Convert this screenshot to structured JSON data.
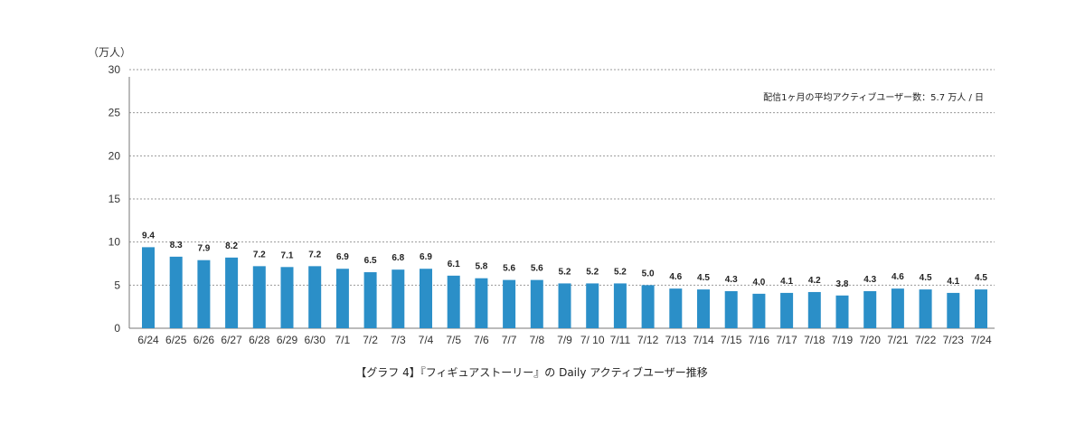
{
  "chart_data": {
    "type": "bar",
    "ylabel": "（万人）",
    "annotation": "配信1ヶ月の平均アクティブユーザー数：5.7 万人 / 日",
    "caption": "【グラフ 4】『フィギュアストーリー』の Daily アクティブユーザー推移",
    "ylim": [
      0,
      30
    ],
    "yticks": [
      0,
      5,
      10,
      15,
      20,
      25,
      30
    ],
    "grid": true,
    "bar_color": "#2b8fc8",
    "categories": [
      "6/24",
      "6/25",
      "6/26",
      "6/27",
      "6/28",
      "6/29",
      "6/30",
      "7/1",
      "7/2",
      "7/3",
      "7/4",
      "7/5",
      "7/6",
      "7/7",
      "7/8",
      "7/9",
      "7/ 10",
      "7/11",
      "7/12",
      "7/13",
      "7/14",
      "7/15",
      "7/16",
      "7/17",
      "7/18",
      "7/19",
      "7/20",
      "7/21",
      "7/22",
      "7/23",
      "7/24"
    ],
    "values": [
      9.4,
      8.3,
      7.9,
      8.2,
      7.2,
      7.1,
      7.2,
      6.9,
      6.5,
      6.8,
      6.9,
      6.1,
      5.8,
      5.6,
      5.6,
      5.2,
      5.2,
      5.2,
      5.0,
      4.6,
      4.5,
      4.3,
      4.0,
      4.1,
      4.2,
      3.8,
      4.3,
      4.6,
      4.5,
      4.1,
      4.5
    ],
    "value_labels": [
      "9.4",
      "8.3",
      "7.9",
      "8.2",
      "7.2",
      "7.1",
      "7.2",
      "6.9",
      "6.5",
      "6.8",
      "6.9",
      "6.1",
      "5.8",
      "5.6",
      "5.6",
      "5.2",
      "5.2",
      "5.2",
      "5.0",
      "4.6",
      "4.5",
      "4.3",
      "4.0",
      "4.1",
      "4.2",
      "3.8",
      "4.3",
      "4.6",
      "4.5",
      "4.1",
      "4.5"
    ]
  }
}
